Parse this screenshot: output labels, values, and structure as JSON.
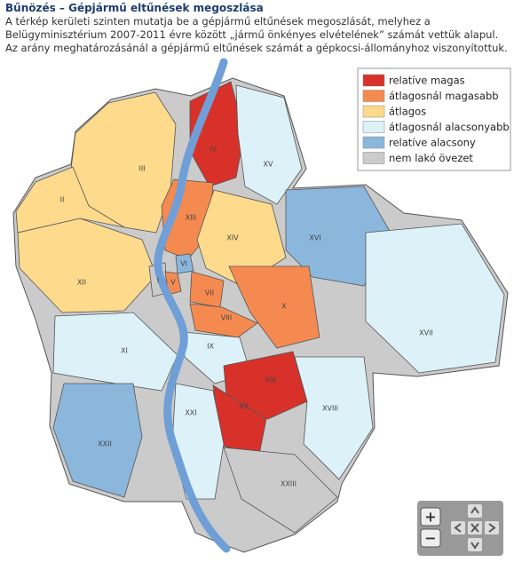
{
  "header": {
    "title": "Bűnözés – Gépjármű eltűnések megoszlása",
    "description": "A térkép kerületi szinten mutatja be a gépjármű eltűnések megoszlását, melyhez a Belügyminisztérium 2007-2011 évre között „jármű önkényes elvételének” számát vettük alapul. Az arány meghatározásánál a gépjármű eltűnések számát a gépkocsi-állományhoz viszonyítottuk."
  },
  "legend": [
    {
      "label": "relatíve magas",
      "color": "#d8312a"
    },
    {
      "label": "átlagosnál magasabb",
      "color": "#f58a50"
    },
    {
      "label": "átlagos",
      "color": "#fdda8c"
    },
    {
      "label": "átlagosnál alacsonyabb",
      "color": "#ddf1f9"
    },
    {
      "label": "relatíve alacsony",
      "color": "#8cb7dc"
    },
    {
      "label": "nem lakó övezet",
      "color": "#cbcbcb"
    }
  ],
  "districts": [
    {
      "label": "III",
      "color": "#fdda8c"
    },
    {
      "label": "IV",
      "color": "#d8312a"
    },
    {
      "label": "XV",
      "color": "#ddf1f9"
    },
    {
      "label": "XIII",
      "color": "#f58a50"
    },
    {
      "label": "XIV",
      "color": "#fdda8c"
    },
    {
      "label": "XVI",
      "color": "#8cb7dc"
    },
    {
      "label": "XVII",
      "color": "#ddf1f9"
    },
    {
      "label": "XII",
      "color": "#fdda8c"
    },
    {
      "label": "II",
      "color": "#fdda8c"
    },
    {
      "label": "XI",
      "color": "#ddf1f9"
    },
    {
      "label": "XXII",
      "color": "#8cb7dc"
    },
    {
      "label": "I",
      "color": "#cbcbcb"
    },
    {
      "label": "VI",
      "color": "#8cb7dc"
    },
    {
      "label": "V",
      "color": "#f58a50"
    },
    {
      "label": "VII",
      "color": "#f58a50"
    },
    {
      "label": "VIII",
      "color": "#f58a50"
    },
    {
      "label": "X",
      "color": "#f58a50"
    },
    {
      "label": "IX",
      "color": "#ddf1f9"
    },
    {
      "label": "XIX",
      "color": "#d8312a"
    },
    {
      "label": "XX",
      "color": "#d8312a"
    },
    {
      "label": "XVIII",
      "color": "#ddf1f9"
    },
    {
      "label": "XXI",
      "color": "#ddf1f9"
    },
    {
      "label": "XXIII",
      "color": "#cbcbcb"
    }
  ],
  "controls": {
    "zoom_in": "+",
    "zoom_out": "−"
  }
}
